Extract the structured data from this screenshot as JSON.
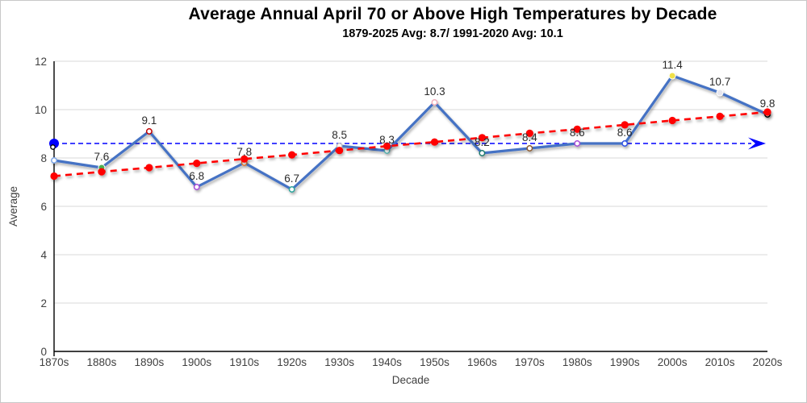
{
  "chart_data": {
    "type": "line",
    "title": "Average Annual April 70 or Above High Temperatures by Decade",
    "subtitle": "1879-2025 Avg: 8.7/ 1991-2020 Avg: 10.1",
    "xlabel": "Decade",
    "ylabel": "Average",
    "ylim": [
      0,
      12
    ],
    "yticks": [
      0,
      2,
      4,
      6,
      8,
      10,
      12
    ],
    "grid": true,
    "legend": false,
    "categories": [
      "1870s",
      "1880s",
      "1890s",
      "1900s",
      "1910s",
      "1920s",
      "1930s",
      "1940s",
      "1950s",
      "1960s",
      "1970s",
      "1980s",
      "1990s",
      "2000s",
      "2010s",
      "2020s"
    ],
    "series": [
      {
        "name": "decade-average",
        "type": "line",
        "color": "#4472C4",
        "line_width": 3.2,
        "values": [
          7.9,
          7.6,
          9.1,
          6.8,
          7.8,
          6.7,
          8.5,
          8.3,
          10.3,
          8.2,
          8.4,
          8.6,
          8.6,
          11.4,
          10.7,
          9.8
        ],
        "labels": [
          "",
          "7.6",
          "9.1",
          "6.8",
          "7.8",
          "6.7",
          "8.5",
          "8.3",
          "10.3",
          "8.2",
          "8.4",
          "8.6",
          "8.6",
          "11.4",
          "10.7",
          "9.8"
        ],
        "marker_colors": [
          "#7CA5E6",
          "#4CAF50",
          "#C00000",
          "#A64CD6",
          "#ED7D31",
          "#2BA39B",
          "#BFBFBF",
          "#55B0AE",
          "#F2AEBB",
          "#1D7A6E",
          "#8C5A2E",
          "#A64CD6",
          "#2D50E6",
          "#F0E04A",
          "#E6E6EE",
          "#000000"
        ],
        "marker_filled": [
          false,
          true,
          false,
          false,
          false,
          false,
          false,
          false,
          false,
          false,
          false,
          false,
          false,
          true,
          true,
          false
        ]
      },
      {
        "name": "linear-trend",
        "type": "line",
        "color": "#FF0000",
        "line_width": 2.6,
        "dash": "8 6",
        "values": [
          7.25,
          7.43,
          7.6,
          7.78,
          7.96,
          8.13,
          8.31,
          8.49,
          8.66,
          8.84,
          9.02,
          9.19,
          9.37,
          9.55,
          9.72,
          9.9
        ],
        "labels": [],
        "marker_colors": null,
        "marker_filled": null
      },
      {
        "name": "overall-average-reference",
        "type": "hline-arrow",
        "color": "#0000FF",
        "value": 8.6
      }
    ],
    "axis_marker": {
      "value": 8.45,
      "color": "#000000"
    },
    "colors": {
      "gridline": "#D9D9D9",
      "axis": "#000000",
      "tick_label": "#404040",
      "data_label": "#2b2b2b"
    }
  }
}
